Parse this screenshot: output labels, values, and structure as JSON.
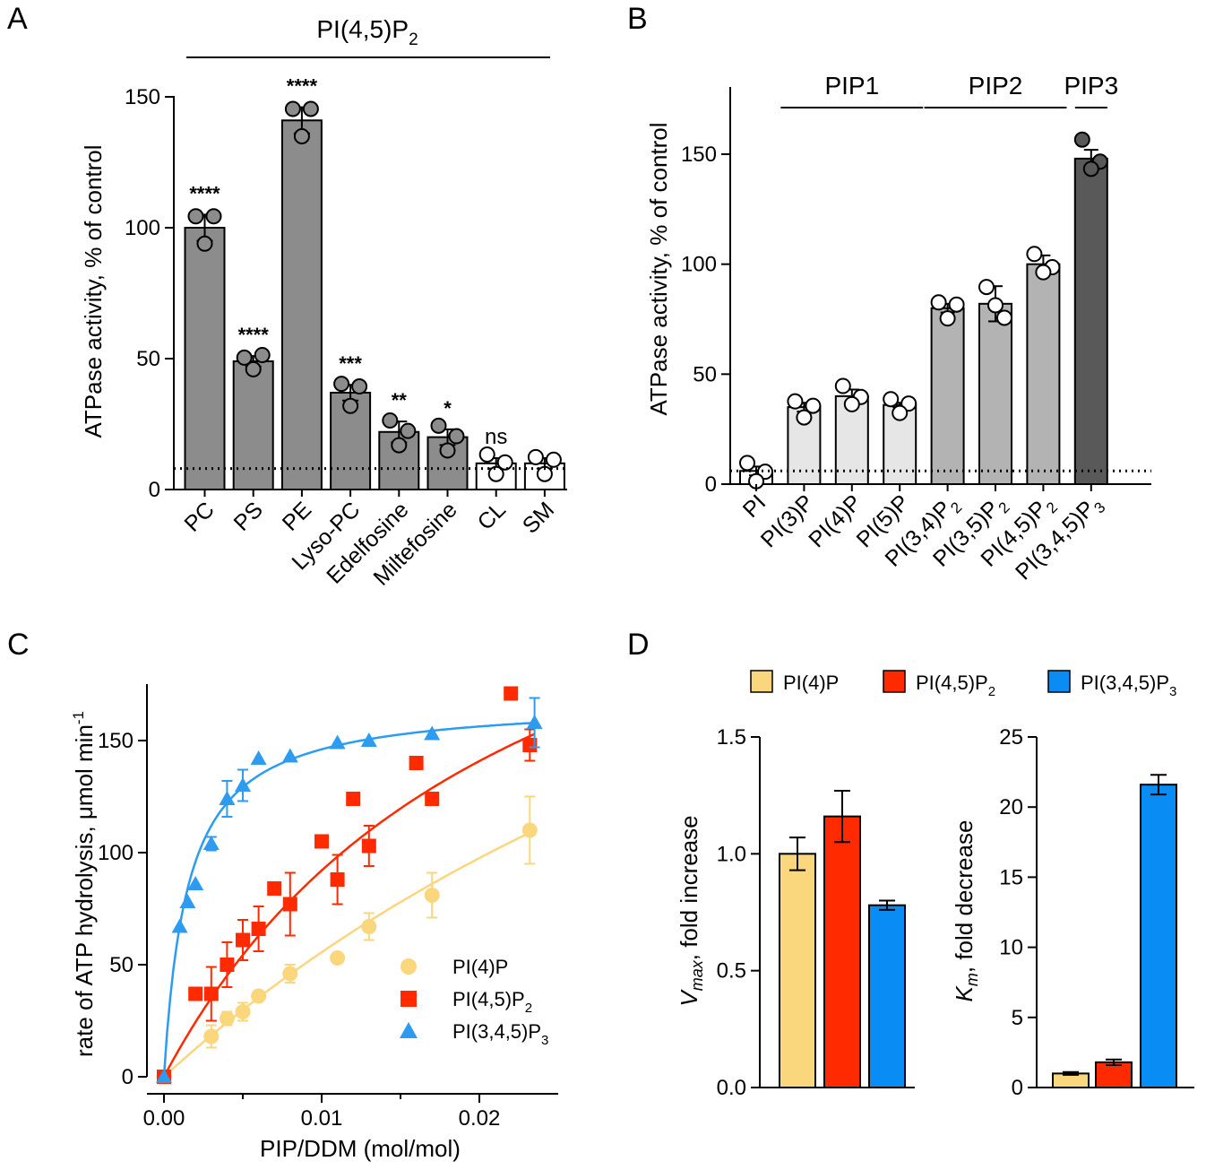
{
  "chart_data": [
    {
      "id": "A",
      "type": "bar",
      "panel_label": "A",
      "header": "PI(4,5)P",
      "header_sub": "2",
      "ylabel": "ATPase activity, % of control",
      "ylim": [
        0,
        150
      ],
      "yticks": [
        "0",
        "50",
        "100",
        "150"
      ],
      "baseline": 8,
      "categories": [
        "PC",
        "PS",
        "PE",
        "Lyso-PC",
        "Edelfosine",
        "Miltefosine",
        "CL",
        "SM"
      ],
      "values": [
        100,
        49,
        141,
        37,
        22,
        20,
        10,
        10
      ],
      "errors": [
        5,
        2,
        5,
        3,
        4,
        3,
        2,
        2
      ],
      "significance": [
        "****",
        "****",
        "****",
        "***",
        "**",
        "*",
        "ns",
        ""
      ],
      "points": [
        [
          103,
          103,
          97
        ],
        [
          49,
          50,
          49
        ],
        [
          144,
          144,
          138
        ],
        [
          39,
          38,
          35
        ],
        [
          25,
          21,
          20
        ],
        [
          23,
          19,
          18
        ],
        [
          12,
          9,
          9
        ],
        [
          11,
          10,
          9
        ]
      ],
      "bar_colors": [
        "#8c8c8c",
        "#8c8c8c",
        "#8c8c8c",
        "#8c8c8c",
        "#8c8c8c",
        "#8c8c8c",
        "#ffffff",
        "#ffffff"
      ]
    },
    {
      "id": "B",
      "type": "bar",
      "panel_label": "B",
      "ylabel": "ATPase activity, % of control",
      "ylim": [
        0,
        175
      ],
      "yticks": [
        "0",
        "50",
        "100",
        "150"
      ],
      "baseline": 6,
      "categories": [
        {
          "base": "PI",
          "sub": ""
        },
        {
          "base": "PI(3)P",
          "sub": ""
        },
        {
          "base": "PI(4)P",
          "sub": ""
        },
        {
          "base": "PI(5)P",
          "sub": ""
        },
        {
          "base": "PI(3,4)P",
          "sub": "2"
        },
        {
          "base": "PI(3,5)P",
          "sub": "2"
        },
        {
          "base": "PI(4,5)P",
          "sub": "2"
        },
        {
          "base": "PI(3,4,5)P",
          "sub": "3"
        }
      ],
      "values": [
        6,
        35,
        40,
        36,
        80,
        82,
        100,
        148
      ],
      "errors": [
        2,
        2,
        3,
        1,
        2,
        8,
        4,
        4
      ],
      "points": [
        [
          8,
          4,
          5
        ],
        [
          36,
          34,
          34
        ],
        [
          43,
          38,
          40
        ],
        [
          37,
          35,
          36
        ],
        [
          81,
          80,
          79
        ],
        [
          88,
          74,
          85
        ],
        [
          103,
          97,
          100
        ],
        [
          155,
          145,
          147
        ]
      ],
      "bar_colors": [
        "#ffffff",
        "#e6e6e6",
        "#e6e6e6",
        "#e6e6e6",
        "#b3b3b3",
        "#b3b3b3",
        "#b3b3b3",
        "#595959"
      ],
      "groups": [
        {
          "label": "PIP1",
          "from": 1,
          "to": 3
        },
        {
          "label": "PIP2",
          "from": 4,
          "to": 6
        },
        {
          "label": "PIP3",
          "from": 7,
          "to": 7
        }
      ]
    },
    {
      "id": "C",
      "type": "scatter",
      "panel_label": "C",
      "xlabel": "PIP/DDM (mol/mol)",
      "ylabel": "rate of ATP hydrolysis, μmol min",
      "ylabel_sup": "-1",
      "xlim": [
        0,
        0.025
      ],
      "ylim": [
        0,
        175
      ],
      "xticks": [
        "0.00",
        "0.01",
        "0.02"
      ],
      "yticks": [
        "0",
        "50",
        "100",
        "150"
      ],
      "series": [
        {
          "name": "PI(4)P",
          "name_sub": "",
          "color": "#fad67c",
          "marker": "circle",
          "x": [
            0,
            0.003,
            0.004,
            0.005,
            0.006,
            0.008,
            0.011,
            0.013,
            0.017,
            0.0232
          ],
          "y": [
            0,
            18,
            26,
            29,
            36,
            46,
            53,
            67,
            81,
            110
          ],
          "err": [
            0,
            5,
            3,
            4,
            0,
            4,
            0,
            6,
            10,
            15
          ],
          "fit": {
            "vmax": 400,
            "km": 0.062
          }
        },
        {
          "name": "PI(4,5)P",
          "name_sub": "2",
          "color": "#ff2a00",
          "marker": "square",
          "x": [
            0,
            0.002,
            0.003,
            0.004,
            0.005,
            0.006,
            0.007,
            0.008,
            0.01,
            0.011,
            0.012,
            0.013,
            0.016,
            0.017,
            0.022,
            0.0232
          ],
          "y": [
            0,
            37,
            37,
            50,
            61,
            66,
            84,
            77,
            105,
            88,
            124,
            103,
            140,
            124,
            171,
            148
          ],
          "err": [
            0,
            0,
            12,
            10,
            9,
            10,
            0,
            14,
            0,
            11,
            0,
            9,
            0,
            0,
            0,
            7
          ],
          "fit": {
            "vmax": 300,
            "km": 0.0226
          }
        },
        {
          "name": "PI(3,4,5)P",
          "name_sub": "3",
          "color": "#2d9cf0",
          "marker": "triangle",
          "x": [
            0,
            0.001,
            0.0015,
            0.002,
            0.003,
            0.004,
            0.005,
            0.006,
            0.008,
            0.011,
            0.013,
            0.017,
            0.0235
          ],
          "y": [
            0,
            67,
            78,
            86,
            104,
            124,
            130,
            142,
            143,
            149,
            150,
            153,
            158
          ],
          "err": [
            0,
            0,
            0,
            0,
            3,
            8,
            7,
            0,
            0,
            0,
            0,
            0,
            11
          ],
          "fit": {
            "vmax": 168,
            "km": 0.0015
          }
        }
      ]
    },
    {
      "id": "D",
      "type": "bar",
      "panel_label": "D",
      "legend": [
        {
          "name": "PI(4)P",
          "sub": "",
          "color": "#fad67c"
        },
        {
          "name": "PI(4,5)P",
          "sub": "2",
          "color": "#ff2a00"
        },
        {
          "name": "PI(3,4,5)P",
          "sub": "3",
          "color": "#0a8cf5"
        }
      ],
      "subplots": [
        {
          "ylabel_sym": "V",
          "ylabel_symsub": "max",
          "ylabel_rest": ", fold increase",
          "ylim": [
            0,
            1.5
          ],
          "yticks": [
            "0.0",
            "0.5",
            "1.0",
            "1.5"
          ],
          "values": [
            1.0,
            1.16,
            0.78
          ],
          "errors": [
            0.07,
            0.11,
            0.02
          ]
        },
        {
          "ylabel_sym": "K",
          "ylabel_symsub": "m",
          "ylabel_rest": ", fold decrease",
          "ylim": [
            0,
            25
          ],
          "yticks": [
            "0",
            "5",
            "10",
            "15",
            "20",
            "25"
          ],
          "values": [
            1.0,
            1.8,
            21.6
          ],
          "errors": [
            0.1,
            0.2,
            0.7
          ]
        }
      ]
    }
  ]
}
